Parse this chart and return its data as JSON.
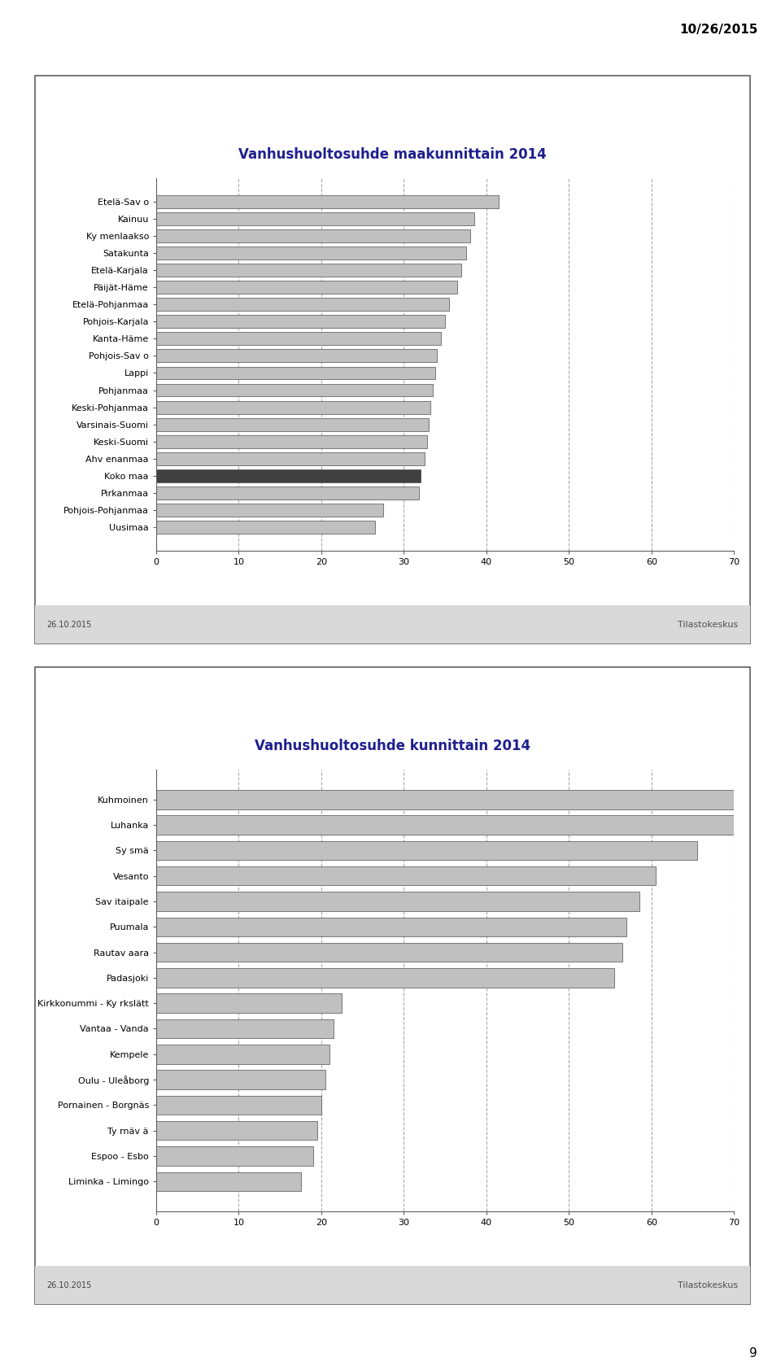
{
  "chart1": {
    "title": "Vanhushuoltosuhde maakunnittain 2014",
    "categories": [
      "Etelä-Sav o",
      "Kainuu",
      "Ky menlaakso",
      "Satakunta",
      "Etelä-Karjala",
      "Päijät-Häme",
      "Etelä-Pohjanmaa",
      "Pohjois-Karjala",
      "Kanta-Häme",
      "Pohjois-Sav o",
      "Lappi",
      "Pohjanmaa",
      "Keski-Pohjanmaa",
      "Varsinais-Suomi",
      "Keski-Suomi",
      "Ahv enanmaa",
      "Koko maa",
      "Pirkanmaa",
      "Pohjois-Pohjanmaa",
      "Uusimaa"
    ],
    "values": [
      41.5,
      38.5,
      38.0,
      37.5,
      37.0,
      36.5,
      35.5,
      35.0,
      34.5,
      34.0,
      33.8,
      33.5,
      33.2,
      33.0,
      32.8,
      32.5,
      32.0,
      31.8,
      27.5,
      26.5
    ],
    "bar_colors": [
      "#c0c0c0",
      "#c0c0c0",
      "#c0c0c0",
      "#c0c0c0",
      "#c0c0c0",
      "#c0c0c0",
      "#c0c0c0",
      "#c0c0c0",
      "#c0c0c0",
      "#c0c0c0",
      "#c0c0c0",
      "#c0c0c0",
      "#c0c0c0",
      "#c0c0c0",
      "#c0c0c0",
      "#c0c0c0",
      "#404040",
      "#c0c0c0",
      "#c0c0c0",
      "#c0c0c0"
    ],
    "xlim": [
      0,
      70
    ],
    "xticks": [
      0,
      10,
      20,
      30,
      40,
      50,
      60,
      70
    ]
  },
  "chart2": {
    "title": "Vanhushuoltosuhde kunnittain 2014",
    "categories": [
      "Kuhmoinen",
      "Luhanka",
      "Sy smä",
      "Vesanto",
      "Sav itaipale",
      "Puumala",
      "Rautav aara",
      "Padasjoki",
      "Kirkkonummi - Ky rkslätt",
      "Vantaa - Vanda",
      "Kempele",
      "Oulu - Uleåborg",
      "Pornainen - Borgnäs",
      "Ty rnäv ä",
      "Espoo - Esbo",
      "Liminka - Limingo"
    ],
    "values": [
      71.0,
      70.0,
      65.5,
      60.5,
      58.5,
      57.0,
      56.5,
      55.5,
      22.5,
      21.5,
      21.0,
      20.5,
      20.0,
      19.5,
      19.0,
      17.5
    ],
    "bar_colors": [
      "#c0c0c0",
      "#c0c0c0",
      "#c0c0c0",
      "#c0c0c0",
      "#c0c0c0",
      "#c0c0c0",
      "#c0c0c0",
      "#c0c0c0",
      "#c0c0c0",
      "#c0c0c0",
      "#c0c0c0",
      "#c0c0c0",
      "#c0c0c0",
      "#c0c0c0",
      "#c0c0c0",
      "#c0c0c0"
    ],
    "xlim": [
      0,
      70
    ],
    "xticks": [
      0,
      10,
      20,
      30,
      40,
      50,
      60,
      70
    ]
  },
  "page_date": "10/26/2015",
  "footer_date": "26.10.2015",
  "page_number": "9",
  "title_color": "#1f1f8f",
  "bar_edge_color": "#505050",
  "background_color": "#ffffff",
  "box_fill_color": "#ffffff",
  "footer_bg_color": "#d9d9d9"
}
